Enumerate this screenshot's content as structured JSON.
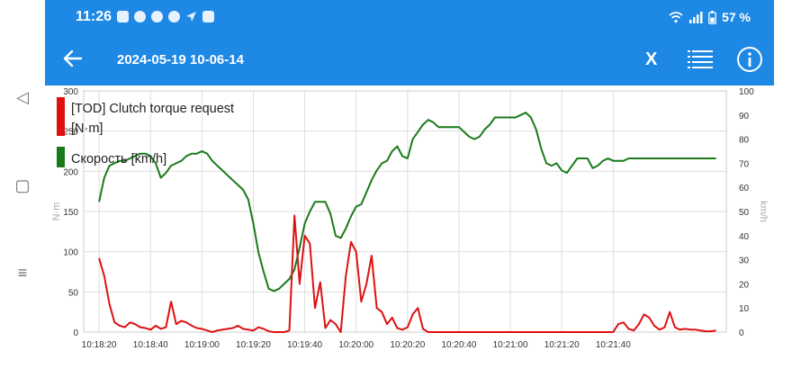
{
  "statusbar": {
    "time": "11:26",
    "battery": "57 %"
  },
  "appbar": {
    "title": "2024-05-19 10-06-14",
    "close_label": "X"
  },
  "chart_data": {
    "type": "line",
    "legend": [
      "[TOD] Clutch torque request",
      "[N·m]",
      "Скорость [km/h]"
    ],
    "ylabel_left": "N·m",
    "ylabel_right": "km/h",
    "yticks_left": [
      "0",
      "50",
      "100",
      "150",
      "200",
      "250",
      "300"
    ],
    "yticks_right": [
      "0",
      "10",
      "20",
      "30",
      "40",
      "50",
      "60",
      "70",
      "80",
      "90",
      "100"
    ],
    "xticks": [
      "10:18:20",
      "10:18:40",
      "10:19:00",
      "10:19:20",
      "10:19:40",
      "10:20:00",
      "10:20:20",
      "10:20:40",
      "10:21:00",
      "10:21:20",
      "10:21:40"
    ],
    "ylim_left": [
      0,
      300
    ],
    "ylim_right": [
      0,
      100
    ],
    "series": [
      {
        "name": "[TOD] Clutch torque request",
        "axis": "left",
        "color": "#dd1111",
        "x": [
          0,
          2,
          4,
          6,
          8,
          10,
          12,
          14,
          16,
          18,
          20,
          22,
          24,
          26,
          28,
          30,
          32,
          34,
          36,
          38,
          40,
          42,
          44,
          46,
          48,
          50,
          52,
          54,
          56,
          58,
          60,
          62,
          64,
          66,
          68,
          70,
          72,
          74,
          76,
          78,
          80,
          82,
          84,
          86,
          88,
          90,
          92,
          94,
          96,
          98,
          100,
          102,
          104,
          106,
          108,
          110,
          112,
          114,
          116,
          118,
          120,
          122,
          124,
          126,
          128,
          130,
          132,
          134,
          136,
          138,
          140,
          142,
          144,
          146,
          148,
          150,
          152,
          154,
          156,
          158,
          160,
          162,
          164,
          166,
          168,
          170,
          172,
          174,
          176,
          178,
          180,
          182,
          184,
          186,
          188,
          190,
          192,
          194,
          196,
          198,
          200,
          202,
          204,
          206,
          208,
          210,
          212,
          214,
          216,
          218,
          220,
          222,
          224,
          226,
          228,
          230,
          232,
          234,
          236,
          238,
          240
        ],
        "y": [
          92,
          70,
          35,
          12,
          8,
          6,
          12,
          10,
          6,
          5,
          3,
          8,
          4,
          6,
          38,
          10,
          14,
          12,
          8,
          5,
          4,
          2,
          0,
          2,
          3,
          4,
          5,
          8,
          4,
          3,
          2,
          6,
          4,
          1,
          0,
          0,
          0,
          2,
          145,
          60,
          120,
          110,
          30,
          62,
          5,
          15,
          10,
          0,
          70,
          112,
          100,
          38,
          60,
          95,
          30,
          25,
          10,
          18,
          5,
          3,
          6,
          22,
          30,
          4,
          0,
          0,
          0,
          0,
          0,
          0,
          0,
          0,
          0,
          0,
          0,
          0,
          0,
          0,
          0,
          0,
          0,
          0,
          0,
          0,
          0,
          0,
          0,
          0,
          0,
          0,
          0,
          0,
          0,
          0,
          0,
          0,
          0,
          0,
          0,
          0,
          0,
          10,
          12,
          4,
          2,
          10,
          22,
          18,
          8,
          3,
          6,
          25,
          6,
          3,
          4,
          3,
          3,
          2,
          1,
          1,
          2
        ]
      },
      {
        "name": "Скорость [km/h]",
        "axis": "right",
        "color": "#1a7a1a",
        "x": [
          0,
          2,
          4,
          6,
          8,
          10,
          12,
          14,
          16,
          18,
          20,
          22,
          24,
          26,
          28,
          30,
          32,
          34,
          36,
          38,
          40,
          42,
          44,
          46,
          48,
          50,
          52,
          54,
          56,
          58,
          60,
          62,
          64,
          66,
          68,
          70,
          72,
          74,
          76,
          78,
          80,
          82,
          84,
          86,
          88,
          90,
          92,
          94,
          96,
          98,
          100,
          102,
          104,
          106,
          108,
          110,
          112,
          114,
          116,
          118,
          120,
          122,
          124,
          126,
          128,
          130,
          132,
          134,
          136,
          138,
          140,
          142,
          144,
          146,
          148,
          150,
          152,
          154,
          156,
          158,
          160,
          162,
          164,
          166,
          168,
          170,
          172,
          174,
          176,
          178,
          180,
          182,
          184,
          186,
          188,
          190,
          192,
          194,
          196,
          198,
          200,
          202,
          204,
          206,
          208,
          210,
          212,
          214,
          216,
          218,
          220,
          222,
          224,
          226,
          228,
          230,
          232,
          234,
          236,
          238,
          240
        ],
        "y": [
          54,
          64,
          69,
          70,
          71,
          71,
          72,
          73,
          74,
          74,
          73,
          70,
          64,
          66,
          69,
          70,
          71,
          73,
          74,
          74,
          75,
          74,
          71,
          69,
          67,
          65,
          63,
          61,
          59,
          55,
          45,
          33,
          25,
          18,
          17,
          18,
          20,
          22,
          26,
          35,
          45,
          50,
          54,
          54,
          54,
          49,
          40,
          39,
          43,
          48,
          52,
          53,
          58,
          63,
          67,
          70,
          71,
          75,
          77,
          73,
          72,
          80,
          83,
          86,
          88,
          87,
          85,
          85,
          85,
          85,
          85,
          83,
          81,
          80,
          81,
          84,
          86,
          89,
          89,
          89,
          89,
          89,
          90,
          91,
          89,
          84,
          76,
          70,
          69,
          70,
          67,
          66,
          69,
          72,
          72,
          72,
          68,
          69,
          71,
          72,
          71,
          71,
          71,
          72,
          72,
          72,
          72,
          72,
          72,
          72,
          72,
          72,
          72,
          72,
          72,
          72,
          72,
          72,
          72,
          72,
          72
        ]
      }
    ]
  }
}
